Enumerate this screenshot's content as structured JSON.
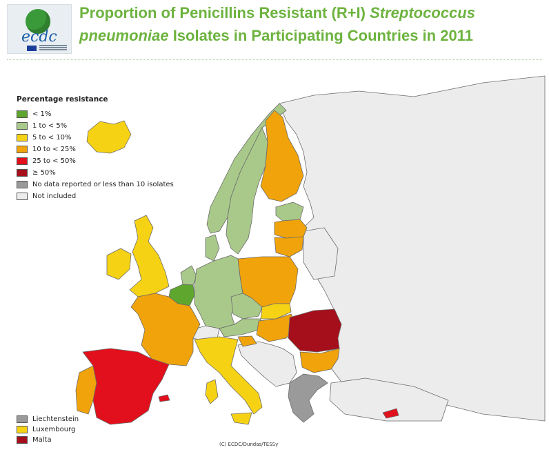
{
  "title": {
    "part1": "Proportion of Penicillins Resistant (R+I) ",
    "italic1": "Streptococcus pneumoniae",
    "part2": " Isolates in Participating Countries in 2011"
  },
  "logo": {
    "text": "ecdc"
  },
  "legend": {
    "heading": "Percentage resistance",
    "items": [
      {
        "label": "< 1%",
        "color": "#5ea62e"
      },
      {
        "label": "1 to < 5%",
        "color": "#a9c98a"
      },
      {
        "label": "5 to < 10%",
        "color": "#f6d215"
      },
      {
        "label": "10 to < 25%",
        "color": "#f0a30a"
      },
      {
        "label": "25 to < 50%",
        "color": "#e2101c"
      },
      {
        "label": "≥ 50%",
        "color": "#a50f1b"
      },
      {
        "label": "No data reported or less than 10 isolates",
        "color": "#9a9a9a"
      },
      {
        "label": "Not included",
        "color": "#ececec"
      }
    ]
  },
  "small_countries": [
    {
      "label": "Liechtenstein",
      "color": "#9a9a9a"
    },
    {
      "label": "Luxembourg",
      "color": "#f6d215"
    },
    {
      "label": "Malta",
      "color": "#a50f1b"
    }
  ],
  "credit": "(C) ECDC/Dundas/TESSy",
  "countries": [
    {
      "name": "Iceland",
      "category": "5 to < 10%"
    },
    {
      "name": "Ireland",
      "category": "5 to < 10%"
    },
    {
      "name": "United Kingdom",
      "category": "5 to < 10%"
    },
    {
      "name": "Norway",
      "category": "1 to < 5%"
    },
    {
      "name": "Sweden",
      "category": "1 to < 5%"
    },
    {
      "name": "Finland",
      "category": "10 to < 25%"
    },
    {
      "name": "Estonia",
      "category": "1 to < 5%"
    },
    {
      "name": "Latvia",
      "category": "10 to < 25%"
    },
    {
      "name": "Lithuania",
      "category": "10 to < 25%"
    },
    {
      "name": "Denmark",
      "category": "1 to < 5%"
    },
    {
      "name": "Netherlands",
      "category": "1 to < 5%"
    },
    {
      "name": "Belgium",
      "category": "< 1%"
    },
    {
      "name": "Germany",
      "category": "1 to < 5%"
    },
    {
      "name": "Poland",
      "category": "10 to < 25%"
    },
    {
      "name": "Czech Republic",
      "category": "1 to < 5%"
    },
    {
      "name": "Slovakia",
      "category": "5 to < 10%"
    },
    {
      "name": "Austria",
      "category": "1 to < 5%"
    },
    {
      "name": "Hungary",
      "category": "10 to < 25%"
    },
    {
      "name": "Slovenia",
      "category": "10 to < 25%"
    },
    {
      "name": "Romania",
      "category": "≥ 50%"
    },
    {
      "name": "Bulgaria",
      "category": "10 to < 25%"
    },
    {
      "name": "France",
      "category": "10 to < 25%"
    },
    {
      "name": "Portugal",
      "category": "10 to < 25%"
    },
    {
      "name": "Spain",
      "category": "25 to < 50%"
    },
    {
      "name": "Italy",
      "category": "5 to < 10%"
    },
    {
      "name": "Greece",
      "category": "No data reported or less than 10 isolates"
    },
    {
      "name": "Cyprus",
      "category": "25 to < 50%"
    }
  ]
}
